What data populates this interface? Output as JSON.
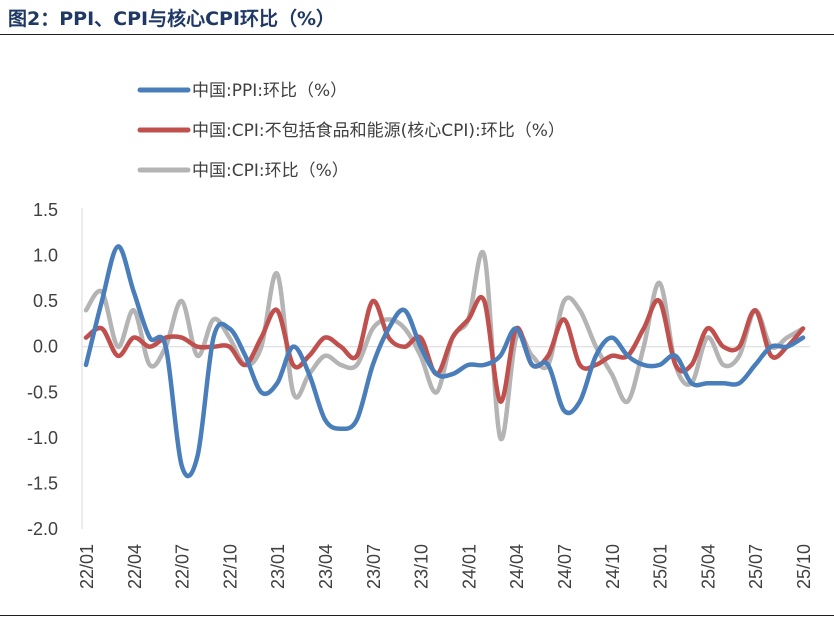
{
  "header": {
    "title": "图2：PPI、CPI与核心CPI环比（%）"
  },
  "chart_data": {
    "type": "line",
    "title": "图2：PPI、CPI与核心CPI环比（%）",
    "xlabel": "",
    "ylabel": "",
    "ylim": [
      -2.0,
      1.5
    ],
    "yticks": [
      "1.5",
      "1.0",
      "0.5",
      "0.0",
      "-0.5",
      "-1.0",
      "-1.5",
      "-2.0"
    ],
    "ytick_values": [
      1.5,
      1.0,
      0.5,
      0.0,
      -0.5,
      -1.0,
      -1.5,
      -2.0
    ],
    "xtick_labels": [
      "22/01",
      "22/04",
      "22/07",
      "22/10",
      "23/01",
      "23/04",
      "23/07",
      "23/10",
      "24/01",
      "24/04",
      "24/07",
      "24/10",
      "25/01",
      "25/04",
      "25/07",
      "25/10"
    ],
    "xtick_indices": [
      0,
      3,
      6,
      9,
      12,
      15,
      18,
      21,
      24,
      27,
      30,
      33,
      36,
      39,
      42,
      45
    ],
    "categories": [
      "22/01",
      "22/02",
      "22/03",
      "22/04",
      "22/05",
      "22/06",
      "22/07",
      "22/08",
      "22/09",
      "22/10",
      "22/11",
      "22/12",
      "23/01",
      "23/02",
      "23/03",
      "23/04",
      "23/05",
      "23/06",
      "23/07",
      "23/08",
      "23/09",
      "23/10",
      "23/11",
      "23/12",
      "24/01",
      "24/02",
      "24/03",
      "24/04",
      "24/05",
      "24/06",
      "24/07",
      "24/08",
      "24/09",
      "24/10",
      "24/11",
      "24/12",
      "25/01",
      "25/02",
      "25/03",
      "25/04",
      "25/05",
      "25/06",
      "25/07",
      "25/08",
      "25/09",
      "25/10"
    ],
    "legend_position": "top-left",
    "grid": false,
    "series": [
      {
        "name": "中国:PPI:环比（%）",
        "color": "#4a7ebb",
        "values": [
          -0.2,
          0.5,
          1.1,
          0.6,
          0.1,
          0.0,
          -1.3,
          -1.2,
          0.1,
          0.2,
          -0.1,
          -0.5,
          -0.4,
          -0.0,
          -0.3,
          -0.8,
          -0.9,
          -0.8,
          -0.2,
          0.2,
          0.4,
          0.0,
          -0.3,
          -0.3,
          -0.2,
          -0.2,
          -0.1,
          0.2,
          -0.2,
          -0.2,
          -0.7,
          -0.6,
          -0.1,
          0.1,
          -0.1,
          -0.2,
          -0.2,
          -0.1,
          -0.4,
          -0.4,
          -0.4,
          -0.4,
          -0.2,
          0.0,
          0.0,
          0.1
        ]
      },
      {
        "name": "中国:CPI:不包括食品和能源(核心CPI):环比（%）",
        "color": "#c0504d",
        "values": [
          0.1,
          0.2,
          -0.1,
          0.1,
          0.0,
          0.1,
          0.1,
          0.0,
          0.0,
          0.0,
          -0.2,
          0.1,
          0.4,
          -0.2,
          -0.1,
          0.1,
          0.0,
          -0.1,
          0.5,
          0.1,
          0.0,
          0.1,
          -0.3,
          0.1,
          0.3,
          0.5,
          -0.6,
          0.2,
          -0.2,
          -0.1,
          0.3,
          -0.2,
          -0.2,
          -0.1,
          -0.1,
          0.2,
          0.5,
          -0.2,
          -0.2,
          0.2,
          0.0,
          0.0,
          0.4,
          -0.1,
          0.0,
          0.2
        ]
      },
      {
        "name": "中国:CPI:环比（%）",
        "color": "#b4b4b4",
        "values": [
          0.4,
          0.6,
          0.0,
          0.4,
          -0.2,
          0.0,
          0.5,
          -0.1,
          0.3,
          0.1,
          -0.2,
          0.0,
          0.8,
          -0.5,
          -0.3,
          -0.1,
          -0.2,
          -0.2,
          0.2,
          0.3,
          0.2,
          -0.1,
          -0.5,
          0.1,
          0.3,
          1.0,
          -1.0,
          0.1,
          -0.1,
          -0.2,
          0.5,
          0.4,
          0.0,
          -0.3,
          -0.6,
          0.0,
          0.7,
          -0.2,
          -0.4,
          0.1,
          -0.2,
          -0.1,
          0.4,
          0.0,
          0.1,
          0.2
        ]
      }
    ]
  }
}
